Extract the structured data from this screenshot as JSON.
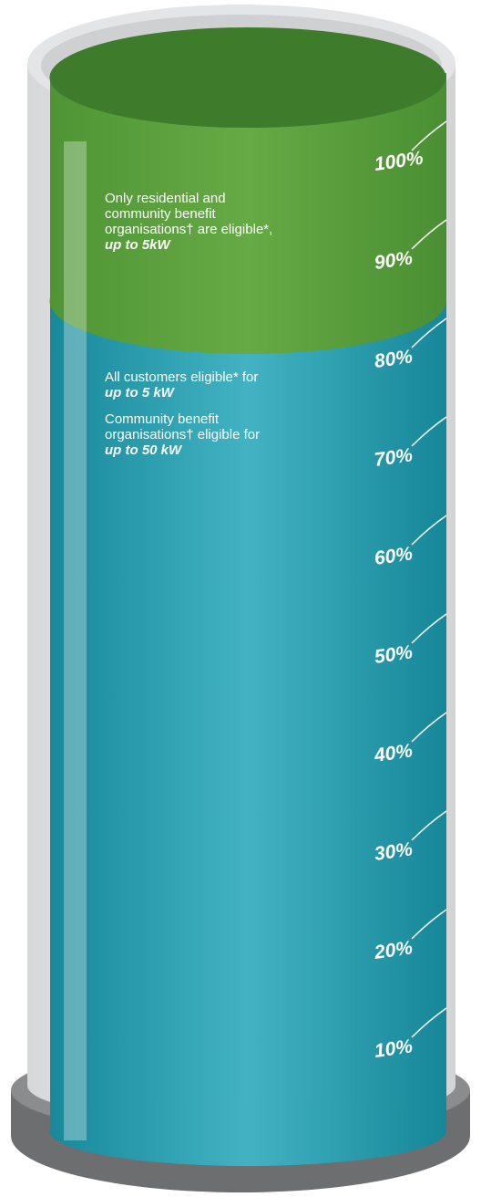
{
  "scale": {
    "labels": [
      "100%",
      "90%",
      "80%",
      "70%",
      "60%",
      "50%",
      "40%",
      "30%",
      "20%",
      "10%"
    ]
  },
  "zones": [
    {
      "paragraphs": [
        {
          "lines": [
            "Only residential and",
            "community benefit",
            "organisations† are eligible*,"
          ],
          "emphasis": "up to 5kW"
        }
      ]
    },
    {
      "paragraphs": [
        {
          "lines": [
            "All customers eligible* for"
          ],
          "emphasis": "up to 5 kW"
        },
        {
          "lines": [
            "Community benefit",
            "organisations† eligible for"
          ],
          "emphasis": "up to 50 kW"
        }
      ]
    }
  ]
}
